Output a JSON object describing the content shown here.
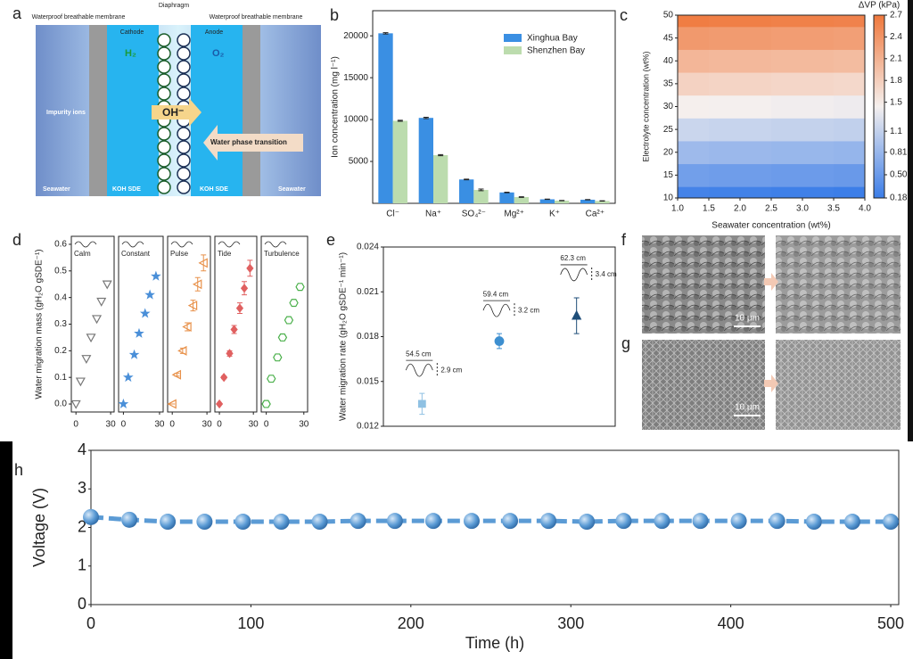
{
  "diagram": {
    "label": "a",
    "diaphragm": "Diaphragm",
    "membrane_left": "Waterproof breathable membrane",
    "membrane_right": "Waterproof breathable membrane",
    "cathode": "Cathode",
    "anode": "Anode",
    "h2": "H₂",
    "o2": "O₂",
    "impurity": "Impurity ions",
    "hydroxide": "OH⁻",
    "transition": "Water phase transition",
    "seawater_left": "Seawater",
    "seawater_right": "Seawater",
    "sde_left": "KOH SDE",
    "sde_right": "KOH SDE"
  },
  "chart_data": [
    {
      "type": "bar",
      "label": "b",
      "ylabel": "Ion concentration (mg l⁻¹)",
      "categories": [
        "Cl⁻",
        "Na⁺",
        "SO₄²⁻",
        "Mg²⁺",
        "K⁺",
        "Ca²⁺"
      ],
      "series": [
        {
          "name": "Xinghua Bay",
          "color": "#3a8fe3",
          "values": [
            20300,
            10200,
            2850,
            1300,
            480,
            430
          ],
          "errors": [
            80,
            80,
            40,
            30,
            20,
            20
          ]
        },
        {
          "name": "Shenzhen Bay",
          "color": "#bcdcae",
          "values": [
            9850,
            5750,
            1600,
            750,
            320,
            280
          ],
          "errors": [
            60,
            60,
            100,
            40,
            20,
            20
          ]
        }
      ],
      "ylim": [
        0,
        23000
      ],
      "yticks": [
        5000,
        10000,
        15000,
        20000
      ],
      "legend": "upper right"
    },
    {
      "type": "heatmap",
      "label": "c",
      "xlabel": "Seawater concentration (wt%)",
      "ylabel": "Electrolyte concentration (wt%)",
      "x": [
        1,
        2,
        3,
        4
      ],
      "y": [
        10,
        15,
        20,
        25,
        30,
        35,
        40,
        45,
        50
      ],
      "z": [
        [
          0.25,
          0.23,
          0.21,
          0.19
        ],
        [
          0.55,
          0.53,
          0.51,
          0.49
        ],
        [
          0.85,
          0.83,
          0.81,
          0.79
        ],
        [
          1.15,
          1.13,
          1.11,
          1.09
        ],
        [
          1.45,
          1.43,
          1.41,
          1.39
        ],
        [
          1.75,
          1.73,
          1.71,
          1.69
        ],
        [
          2.05,
          2.03,
          2.01,
          1.99
        ],
        [
          2.35,
          2.33,
          2.31,
          2.29
        ],
        [
          2.65,
          2.63,
          2.61,
          2.59
        ]
      ],
      "xlim": [
        1,
        4
      ],
      "ylim": [
        10,
        50
      ],
      "xticks": [
        {
          "value": 1,
          "label": "1.0"
        },
        1.5,
        {
          "value": 2,
          "label": "2.0"
        },
        2.5,
        {
          "value": 3,
          "label": "3.0"
        },
        3.5,
        {
          "value": 4,
          "label": "4.0"
        }
      ],
      "yticks": [
        10,
        15,
        20,
        25,
        30,
        35,
        40,
        45,
        50
      ],
      "colorbar": {
        "title": "ΔVP (kPa)",
        "clim": [
          0.18,
          2.7
        ],
        "ticks": [
          0.18,
          {
            "value": 0.5,
            "label": "0.50"
          },
          0.81,
          1.1,
          1.5,
          1.8,
          2.1,
          2.4,
          2.7
        ]
      }
    },
    {
      "type": "scatter_panels",
      "label": "d",
      "ylabel": "Water migration mass (gH₂O gSDE⁻¹)",
      "x": [
        0,
        4,
        9,
        13,
        18,
        22,
        27
      ],
      "xlim": [
        -4,
        33
      ],
      "xticks": [
        0,
        30
      ],
      "ylim": [
        -0.03,
        0.63
      ],
      "yticks": [
        {
          "value": 0,
          "label": "0.0"
        },
        0.1,
        0.2,
        0.3,
        0.4,
        0.5,
        0.6
      ],
      "series": [
        {
          "name": "Calm",
          "color": "#777777",
          "marker": "triangle-down-open",
          "values": [
            0,
            0.085,
            0.17,
            0.25,
            0.32,
            0.385,
            0.45
          ]
        },
        {
          "name": "Constant",
          "color": "#4a8fd8",
          "marker": "star",
          "values": [
            0,
            0.1,
            0.185,
            0.265,
            0.34,
            0.41,
            0.48
          ]
        },
        {
          "name": "Pulse",
          "color": "#e8914a",
          "marker": "triangle-left-open",
          "values": [
            0,
            0.11,
            0.2,
            0.29,
            0.37,
            0.45,
            0.53
          ],
          "errors": [
            0,
            0.005,
            0.01,
            0.015,
            0.02,
            0.025,
            0.03
          ]
        },
        {
          "name": "Tide",
          "color": "#e06060",
          "marker": "diamond",
          "values": [
            0,
            0.1,
            0.19,
            0.28,
            0.36,
            0.435,
            0.51
          ],
          "errors": [
            0,
            0.005,
            0.01,
            0.015,
            0.02,
            0.025,
            0.03
          ]
        },
        {
          "name": "Turbulence",
          "color": "#4bb04b",
          "marker": "hexagon-open",
          "values": [
            0,
            0.095,
            0.175,
            0.25,
            0.315,
            0.38,
            0.44
          ]
        }
      ]
    },
    {
      "type": "errorbar",
      "label": "e",
      "ylabel": "Water migration rate (gH₂O gSDE⁻¹ min⁻¹)",
      "categories": [
        null,
        null,
        null
      ],
      "values": [
        0.0135,
        0.0177,
        0.0194
      ],
      "errors": [
        0.0007,
        0.0005,
        0.0012
      ],
      "colors": [
        "#8fc1e3",
        "#3d8fd0",
        "#1f4e79"
      ],
      "markers": [
        "square",
        "circle",
        "triangle"
      ],
      "annotations": [
        {
          "wavelength": "54.5 cm",
          "amplitude": "2.9 cm"
        },
        {
          "wavelength": "59.4 cm",
          "amplitude": "3.2 cm"
        },
        {
          "wavelength": "62.3 cm",
          "amplitude": "3.4 cm"
        }
      ],
      "ylim": [
        0.012,
        0.024
      ],
      "yticks": [
        0.012,
        0.015,
        0.018,
        0.021,
        0.024
      ]
    },
    {
      "type": "line",
      "label": "h",
      "xlabel": "Time (h)",
      "ylabel": "Voltage (V)",
      "color": "#5b9bd5",
      "x": [
        0,
        24,
        48,
        71,
        95,
        119,
        143,
        167,
        190,
        214,
        238,
        262,
        286,
        310,
        333,
        357,
        381,
        405,
        429,
        452,
        476,
        500
      ],
      "values": [
        2.27,
        2.2,
        2.15,
        2.15,
        2.15,
        2.15,
        2.15,
        2.17,
        2.17,
        2.17,
        2.17,
        2.17,
        2.17,
        2.15,
        2.17,
        2.17,
        2.17,
        2.17,
        2.17,
        2.15,
        2.15,
        2.15
      ],
      "xlim": [
        0,
        505
      ],
      "ylim": [
        0,
        4
      ],
      "xticks": [
        0,
        100,
        200,
        300,
        400,
        500
      ],
      "yticks": [
        0,
        1,
        2,
        3,
        4
      ]
    }
  ],
  "images": [
    {
      "label": "f",
      "scale_bar": "10 μm"
    },
    {
      "label": "g",
      "scale_bar": "10 μm"
    }
  ]
}
